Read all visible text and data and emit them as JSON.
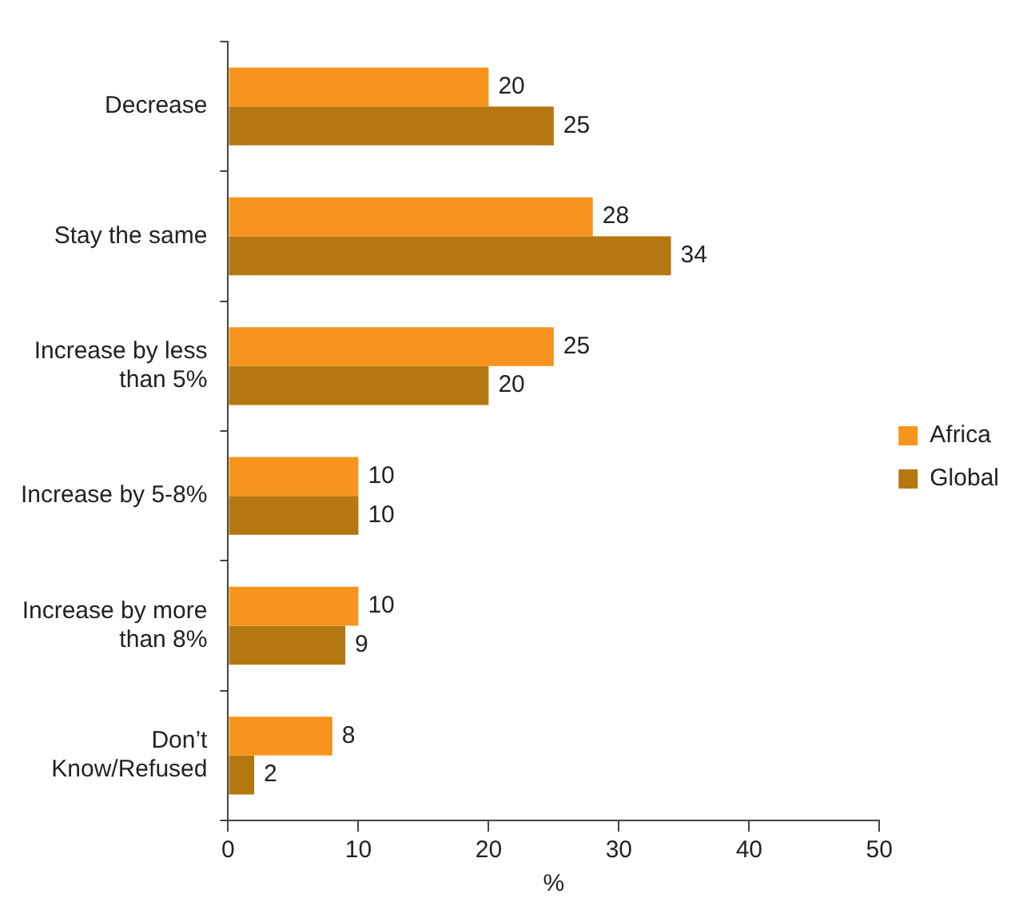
{
  "chart_data": {
    "type": "bar",
    "orientation": "horizontal",
    "categories": [
      "Decrease",
      "Stay the same",
      "Increase by less than 5%",
      "Increase by 5-8%",
      "Increase by more than 8%",
      "Don’t Know/Refused"
    ],
    "series": [
      {
        "name": "Africa",
        "color": "#f7941d",
        "values": [
          20,
          28,
          25,
          10,
          10,
          8
        ]
      },
      {
        "name": "Global",
        "color": "#b5770f",
        "values": [
          25,
          34,
          20,
          10,
          9,
          2
        ]
      }
    ],
    "xlim": [
      0,
      50
    ],
    "xticks": [
      0,
      10,
      20,
      30,
      40,
      50
    ],
    "xlabel": "%",
    "grid": false,
    "legend": "right",
    "data_labels": true
  }
}
